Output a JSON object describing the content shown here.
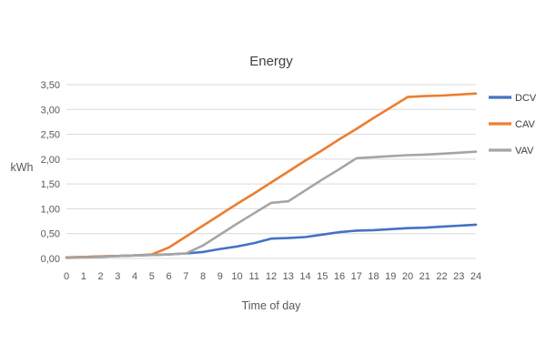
{
  "chart_data": {
    "type": "line",
    "title": "Energy",
    "xlabel": "Time of day",
    "ylabel": "kWh",
    "x": [
      0,
      1,
      2,
      3,
      4,
      5,
      6,
      7,
      8,
      9,
      10,
      11,
      12,
      13,
      14,
      15,
      16,
      17,
      18,
      19,
      20,
      21,
      22,
      23,
      24
    ],
    "x_tick_labels": [
      "0",
      "1",
      "2",
      "3",
      "4",
      "5",
      "6",
      "7",
      "8",
      "9",
      "10",
      "11",
      "12",
      "13",
      "14",
      "15",
      "16",
      "17",
      "18",
      "19",
      "20",
      "21",
      "22",
      "23",
      "24"
    ],
    "y_tick_values": [
      0,
      0.5,
      1,
      1.5,
      2,
      2.5,
      3,
      3.5
    ],
    "y_tick_labels": [
      "0,00",
      "0,50",
      "1,00",
      "1,50",
      "2,00",
      "2,50",
      "3,00",
      "3,50"
    ],
    "ylim": [
      0,
      3.5
    ],
    "grid": true,
    "legend_position": "right",
    "series": [
      {
        "name": "DCV",
        "color": "#4472C4",
        "values": [
          0.02,
          0.03,
          0.04,
          0.05,
          0.06,
          0.07,
          0.08,
          0.1,
          0.13,
          0.19,
          0.24,
          0.31,
          0.4,
          0.41,
          0.43,
          0.48,
          0.53,
          0.56,
          0.57,
          0.59,
          0.61,
          0.62,
          0.64,
          0.66,
          0.68
        ]
      },
      {
        "name": "CAV",
        "color": "#ED7D31",
        "values": [
          0.02,
          0.03,
          0.04,
          0.05,
          0.06,
          0.08,
          0.22,
          0.44,
          0.66,
          0.88,
          1.1,
          1.31,
          1.53,
          1.75,
          1.97,
          2.18,
          2.4,
          2.61,
          2.83,
          3.04,
          3.25,
          3.27,
          3.28,
          3.3,
          3.32
        ]
      },
      {
        "name": "VAV",
        "color": "#A5A5A5",
        "values": [
          0.01,
          0.02,
          0.03,
          0.05,
          0.06,
          0.07,
          0.08,
          0.1,
          0.26,
          0.48,
          0.7,
          0.91,
          1.12,
          1.15,
          1.37,
          1.59,
          1.8,
          2.02,
          2.04,
          2.06,
          2.08,
          2.09,
          2.11,
          2.13,
          2.15
        ]
      }
    ]
  },
  "colors": {
    "gridline": "#D9D9D9",
    "axis_text": "#595959",
    "title_text": "#404040",
    "background": "#FFFFFF"
  }
}
